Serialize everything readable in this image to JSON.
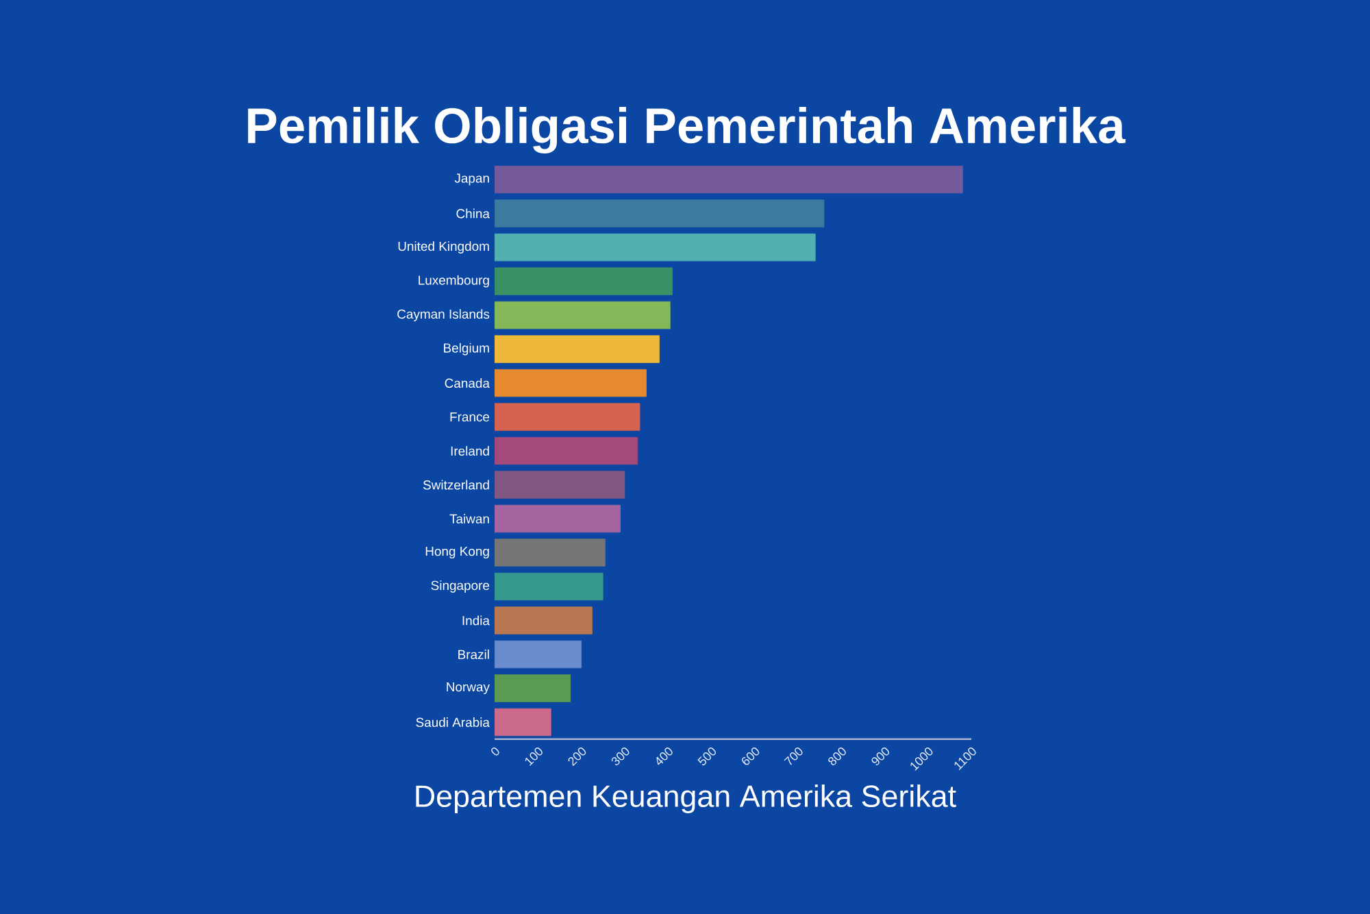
{
  "chart_data": {
    "type": "bar",
    "orientation": "horizontal",
    "title": "Pemilik Obligasi Pemerintah Amerika",
    "annotations": [
      "Departemen Keuangan Amerika Serikat"
    ],
    "categories": [
      "Japan",
      "China",
      "United Kingdom",
      "Luxembourg",
      "Cayman Islands",
      "Belgium",
      "Canada",
      "France",
      "Ireland",
      "Switzerland",
      "Taiwan",
      "Hong Kong",
      "Singapore",
      "India",
      "Brazil",
      "Norway",
      "Saudi Arabia"
    ],
    "values": [
      1080,
      760,
      740,
      410,
      405,
      380,
      350,
      335,
      330,
      300,
      290,
      255,
      250,
      225,
      200,
      175,
      130
    ],
    "colors": [
      "#745a9a",
      "#3d7aa0",
      "#52b0b0",
      "#3a9166",
      "#86b85a",
      "#efb83a",
      "#e68a30",
      "#d6634f",
      "#a34a7a",
      "#815882",
      "#a5649f",
      "#767676",
      "#36998d",
      "#b97852",
      "#6a8ccf",
      "#5a9a52",
      "#cb6a8a"
    ],
    "xlim": [
      0,
      1100
    ],
    "xticks": [
      0,
      100,
      200,
      300,
      400,
      500,
      600,
      700,
      800,
      900,
      1000,
      1100
    ]
  }
}
